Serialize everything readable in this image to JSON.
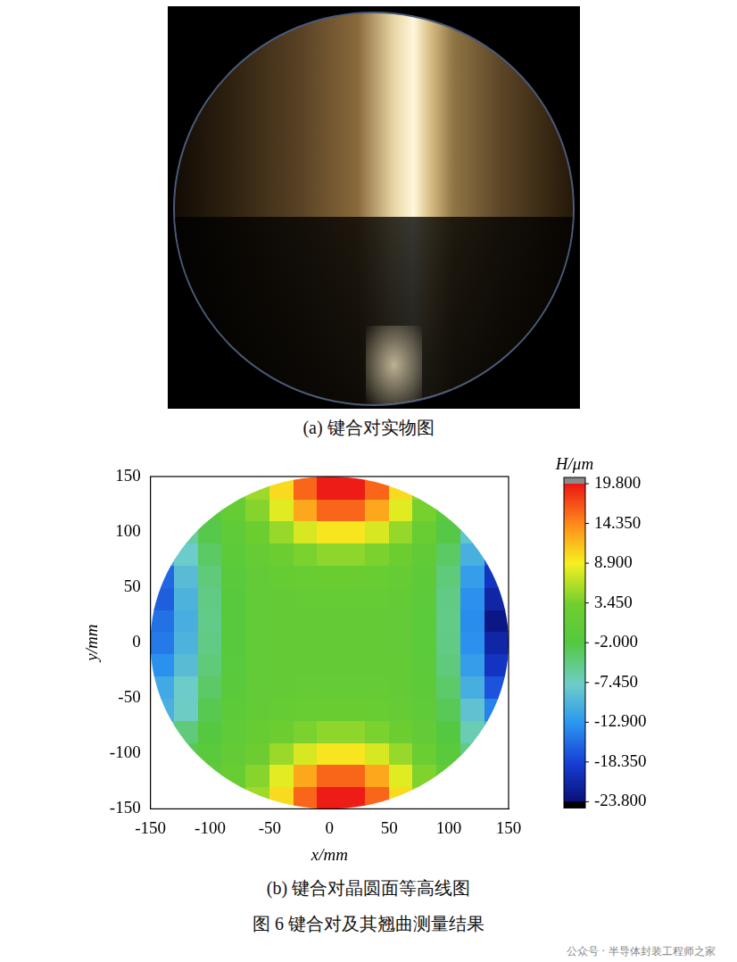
{
  "figure": {
    "panel_a": {
      "caption": "(a) 键合对实物图"
    },
    "panel_b": {
      "caption": "(b) 键合对晶圆面等高线图"
    },
    "caption": "图 6 键合对及其翘曲测量结果",
    "watermark": "公众号 · 半导体封装工程师之家"
  },
  "chart_data": {
    "type": "heatmap",
    "x_label": "x/mm",
    "y_label": "y/mm",
    "xlim": [
      -150,
      150
    ],
    "ylim": [
      -150,
      150
    ],
    "xticks": [
      -150,
      -100,
      -50,
      0,
      50,
      100,
      150
    ],
    "yticks": [
      -150,
      -100,
      -50,
      0,
      50,
      100,
      150
    ],
    "grid": false,
    "x": [
      -140,
      -120,
      -100,
      -80,
      -60,
      -40,
      -20,
      0,
      20,
      40,
      60,
      80,
      100,
      120,
      140
    ],
    "y": [
      -140,
      -120,
      -100,
      -80,
      -60,
      -40,
      -20,
      0,
      20,
      40,
      60,
      80,
      100,
      120,
      140
    ],
    "cells": [
      [
        null,
        null,
        null,
        2.3,
        5.2,
        10.0,
        16.0,
        19.5,
        19.5,
        16.0,
        10.0,
        4.9,
        null,
        null,
        null
      ],
      [
        null,
        null,
        0.1,
        1.8,
        4.2,
        8.1,
        12.7,
        16.0,
        16.0,
        12.7,
        8.0,
        3.9,
        0.4,
        null,
        null
      ],
      [
        null,
        -2.7,
        -0.8,
        1.0,
        2.7,
        5.0,
        7.6,
        9.5,
        9.5,
        7.6,
        4.9,
        2.2,
        -0.8,
        -4.8,
        null
      ],
      [
        -9.0,
        -4.4,
        -1.7,
        0.2,
        1.5,
        2.6,
        3.7,
        4.5,
        4.5,
        3.7,
        2.5,
        0.9,
        -2.0,
        -6.8,
        -11.3
      ],
      [
        -10.5,
        -7.5,
        -2.7,
        -0.3,
        0.8,
        1.4,
        1.8,
        2.0,
        2.0,
        1.8,
        1.3,
        0.2,
        -2.9,
        -8.8,
        -14.3
      ],
      [
        -11.2,
        -7.8,
        -3.6,
        -0.7,
        0.6,
        1.0,
        1.2,
        1.2,
        1.2,
        1.2,
        0.9,
        -0.2,
        -3.8,
        -10.7,
        -17.2
      ],
      [
        -13.3,
        -9.3,
        -4.4,
        -1.0,
        0.4,
        0.9,
        1.0,
        1.0,
        1.0,
        1.0,
        0.8,
        -0.5,
        -4.5,
        -12.3,
        -19.7
      ],
      [
        -14.8,
        -10.3,
        -4.9,
        -1.2,
        0.4,
        0.9,
        1.0,
        1.0,
        1.0,
        1.0,
        0.7,
        -0.6,
        -4.9,
        -13.3,
        -21.3
      ],
      [
        -15.3,
        -10.7,
        -5.1,
        -1.3,
        0.4,
        0.9,
        1.0,
        1.0,
        1.0,
        1.0,
        0.7,
        -0.6,
        -5.0,
        -13.6,
        -23.0
      ],
      [
        -16.5,
        -10.3,
        -4.9,
        -1.2,
        0.4,
        1.0,
        1.2,
        1.2,
        1.2,
        1.2,
        0.8,
        -0.5,
        -4.9,
        -13.3,
        -21.3
      ],
      [
        -16.0,
        -9.3,
        -4.4,
        -0.9,
        0.7,
        1.4,
        1.8,
        2.0,
        2.0,
        1.8,
        1.2,
        -0.2,
        -4.4,
        -12.3,
        -19.7
      ],
      [
        -11.2,
        -7.8,
        -3.5,
        -0.4,
        1.3,
        2.5,
        3.7,
        4.5,
        4.5,
        3.7,
        2.4,
        0.5,
        -3.5,
        -10.6,
        -17.2
      ],
      [
        null,
        -6.1,
        -2.5,
        0.3,
        2.5,
        4.9,
        7.6,
        9.5,
        9.5,
        7.6,
        4.8,
        1.8,
        -2.3,
        -8.6,
        null
      ],
      [
        null,
        null,
        -1.4,
        1.2,
        4.1,
        8.0,
        12.7,
        16.0,
        16.0,
        12.7,
        8.0,
        3.5,
        -1.0,
        null,
        null
      ],
      [
        null,
        null,
        null,
        1.8,
        5.1,
        10.0,
        16.0,
        19.5,
        19.5,
        16.0,
        10.0,
        4.6,
        null,
        null,
        null
      ]
    ],
    "colorbar": {
      "label": "H/μm",
      "range": [
        -23.8,
        19.8
      ],
      "ticks": [
        {
          "value": 19.8,
          "label": "19.800"
        },
        {
          "value": 14.35,
          "label": "14.350"
        },
        {
          "value": 8.9,
          "label": "8.900"
        },
        {
          "value": 3.45,
          "label": "3.450"
        },
        {
          "value": -2,
          "label": "-2.000"
        },
        {
          "value": -7.45,
          "label": "-7.450"
        },
        {
          "value": -12.9,
          "label": "-12.900"
        },
        {
          "value": -18.35,
          "label": "-18.350"
        },
        {
          "value": -23.8,
          "label": "-23.800"
        }
      ]
    }
  }
}
